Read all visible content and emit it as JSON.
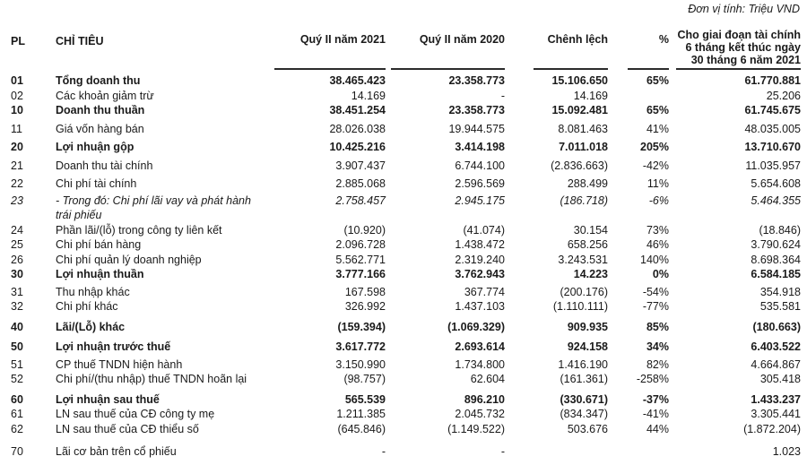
{
  "page": {
    "unit_note": "Đơn vị tính: Triệu VND"
  },
  "colors": {
    "text": "#1a1a1a",
    "background": "#ffffff",
    "rule": "#2b2b2b"
  },
  "table": {
    "columns": {
      "pl": "PL",
      "label": "CHỈ TIÊU",
      "q2_2021": "Quý II năm 2021",
      "q2_2020": "Quý II năm 2020",
      "diff": "Chênh lệch",
      "pct": "%",
      "h1_2021": "Cho giai đoạn tài chính 6 tháng kết thúc ngày 30 tháng 6 năm 2021"
    },
    "rows": [
      {
        "pl": "01",
        "label": "Tổng doanh thu",
        "v2021": "38.465.423",
        "v2020": "23.358.773",
        "diff": "15.106.650",
        "pct": "65%",
        "h1": "61.770.881"
      },
      {
        "pl": "02",
        "label": "Các khoản giảm trừ",
        "v2021": "14.169",
        "v2020": "-",
        "diff": "14.169",
        "pct": "",
        "h1": "25.206"
      },
      {
        "pl": "10",
        "label": "Doanh thu thuần",
        "v2021": "38.451.254",
        "v2020": "23.358.773",
        "diff": "15.092.481",
        "pct": "65%",
        "h1": "61.745.675"
      },
      {
        "pl": "11",
        "label": "Giá vốn hàng bán",
        "v2021": "28.026.038",
        "v2020": "19.944.575",
        "diff": "8.081.463",
        "pct": "41%",
        "h1": "48.035.005"
      },
      {
        "pl": "20",
        "label": "Lợi nhuận gộp",
        "v2021": "10.425.216",
        "v2020": "3.414.198",
        "diff": "7.011.018",
        "pct": "205%",
        "h1": "13.710.670"
      },
      {
        "pl": "21",
        "label": "Doanh thu tài chính",
        "v2021": "3.907.437",
        "v2020": "6.744.100",
        "diff": "(2.836.663)",
        "pct": "-42%",
        "h1": "11.035.957"
      },
      {
        "pl": "22",
        "label": "Chi phí tài chính",
        "v2021": "2.885.068",
        "v2020": "2.596.569",
        "diff": "288.499",
        "pct": "11%",
        "h1": "5.654.608"
      },
      {
        "pl": "23",
        "label": "- Trong đó: Chi phí lãi vay và phát hành trái phiếu",
        "v2021": "2.758.457",
        "v2020": "2.945.175",
        "diff": "(186.718)",
        "pct": "-6%",
        "h1": "5.464.355"
      },
      {
        "pl": "24",
        "label": "Phần lãi/(lỗ) trong công ty liên kết",
        "v2021": "(10.920)",
        "v2020": "(41.074)",
        "diff": "30.154",
        "pct": "73%",
        "h1": "(18.846)"
      },
      {
        "pl": "25",
        "label": "Chi phí bán hàng",
        "v2021": "2.096.728",
        "v2020": "1.438.472",
        "diff": "658.256",
        "pct": "46%",
        "h1": "3.790.624"
      },
      {
        "pl": "26",
        "label": "Chi phí quản lý doanh nghiệp",
        "v2021": "5.562.771",
        "v2020": "2.319.240",
        "diff": "3.243.531",
        "pct": "140%",
        "h1": "8.698.364"
      },
      {
        "pl": "30",
        "label": "Lợi nhuận thuần",
        "v2021": "3.777.166",
        "v2020": "3.762.943",
        "diff": "14.223",
        "pct": "0%",
        "h1": "6.584.185"
      },
      {
        "pl": "31",
        "label": "Thu nhập khác",
        "v2021": "167.598",
        "v2020": "367.774",
        "diff": "(200.176)",
        "pct": "-54%",
        "h1": "354.918"
      },
      {
        "pl": "32",
        "label": "Chi phí khác",
        "v2021": "326.992",
        "v2020": "1.437.103",
        "diff": "(1.110.111)",
        "pct": "-77%",
        "h1": "535.581"
      },
      {
        "pl": "40",
        "label": "Lãi/(Lỗ) khác",
        "v2021": "(159.394)",
        "v2020": "(1.069.329)",
        "diff": "909.935",
        "pct": "85%",
        "h1": "(180.663)"
      },
      {
        "pl": "50",
        "label": "Lợi nhuận trước thuế",
        "v2021": "3.617.772",
        "v2020": "2.693.614",
        "diff": "924.158",
        "pct": "34%",
        "h1": "6.403.522"
      },
      {
        "pl": "51",
        "label": "CP thuế TNDN hiện hành",
        "v2021": "3.150.990",
        "v2020": "1.734.800",
        "diff": "1.416.190",
        "pct": "82%",
        "h1": "4.664.867"
      },
      {
        "pl": "52",
        "label": "Chi phí/(thu nhập) thuế TNDN hoãn lại",
        "v2021": "(98.757)",
        "v2020": "62.604",
        "diff": "(161.361)",
        "pct": "-258%",
        "h1": "305.418"
      },
      {
        "pl": "60",
        "label": "Lợi nhuận sau thuế",
        "v2021": "565.539",
        "v2020": "896.210",
        "diff": "(330.671)",
        "pct": "-37%",
        "h1": "1.433.237"
      },
      {
        "pl": "61",
        "label": "LN sau thuế của CĐ công ty mẹ",
        "v2021": "1.211.385",
        "v2020": "2.045.732",
        "diff": "(834.347)",
        "pct": "-41%",
        "h1": "3.305.441"
      },
      {
        "pl": "62",
        "label": "LN sau thuế của CĐ thiểu số",
        "v2021": "(645.846)",
        "v2020": "(1.149.522)",
        "diff": "503.676",
        "pct": "44%",
        "h1": "(1.872.204)"
      },
      {
        "pl": "70",
        "label": "Lãi cơ bản trên cổ phiếu",
        "v2021": "-",
        "v2020": "-",
        "diff": "",
        "pct": "",
        "h1": "1.023"
      }
    ]
  }
}
